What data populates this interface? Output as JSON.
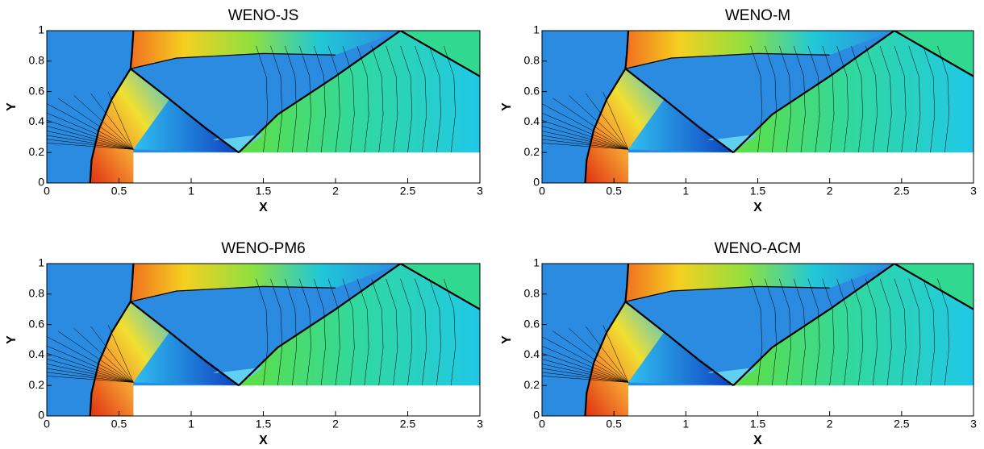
{
  "chart_data": [
    {
      "type": "contour",
      "title": "WENO-JS",
      "xlabel": "X",
      "ylabel": "Y",
      "xlim": [
        0,
        3
      ],
      "ylim": [
        0,
        1
      ],
      "xticks": [
        0,
        0.5,
        1,
        1.5,
        2,
        2.5,
        3
      ],
      "yticks": [
        0,
        0.2,
        0.4,
        0.6,
        0.8,
        1
      ]
    },
    {
      "type": "contour",
      "title": "WENO-M",
      "xlabel": "X",
      "ylabel": "Y",
      "xlim": [
        0,
        3
      ],
      "ylim": [
        0,
        1
      ],
      "xticks": [
        0,
        0.5,
        1,
        1.5,
        2,
        2.5,
        3
      ],
      "yticks": [
        0,
        0.2,
        0.4,
        0.6,
        0.8,
        1
      ]
    },
    {
      "type": "contour",
      "title": "WENO-PM6",
      "xlabel": "X",
      "ylabel": "Y",
      "xlim": [
        0,
        3
      ],
      "ylim": [
        0,
        1
      ],
      "xticks": [
        0,
        0.5,
        1,
        1.5,
        2,
        2.5,
        3
      ],
      "yticks": [
        0,
        0.2,
        0.4,
        0.6,
        0.8,
        1
      ]
    },
    {
      "type": "contour",
      "title": "WENO-ACM",
      "xlabel": "X",
      "ylabel": "Y",
      "xlim": [
        0,
        3
      ],
      "ylim": [
        0,
        1
      ],
      "xticks": [
        0,
        0.5,
        1,
        1.5,
        2,
        2.5,
        3
      ],
      "yticks": [
        0,
        0.2,
        0.4,
        0.6,
        0.8,
        1
      ]
    }
  ]
}
